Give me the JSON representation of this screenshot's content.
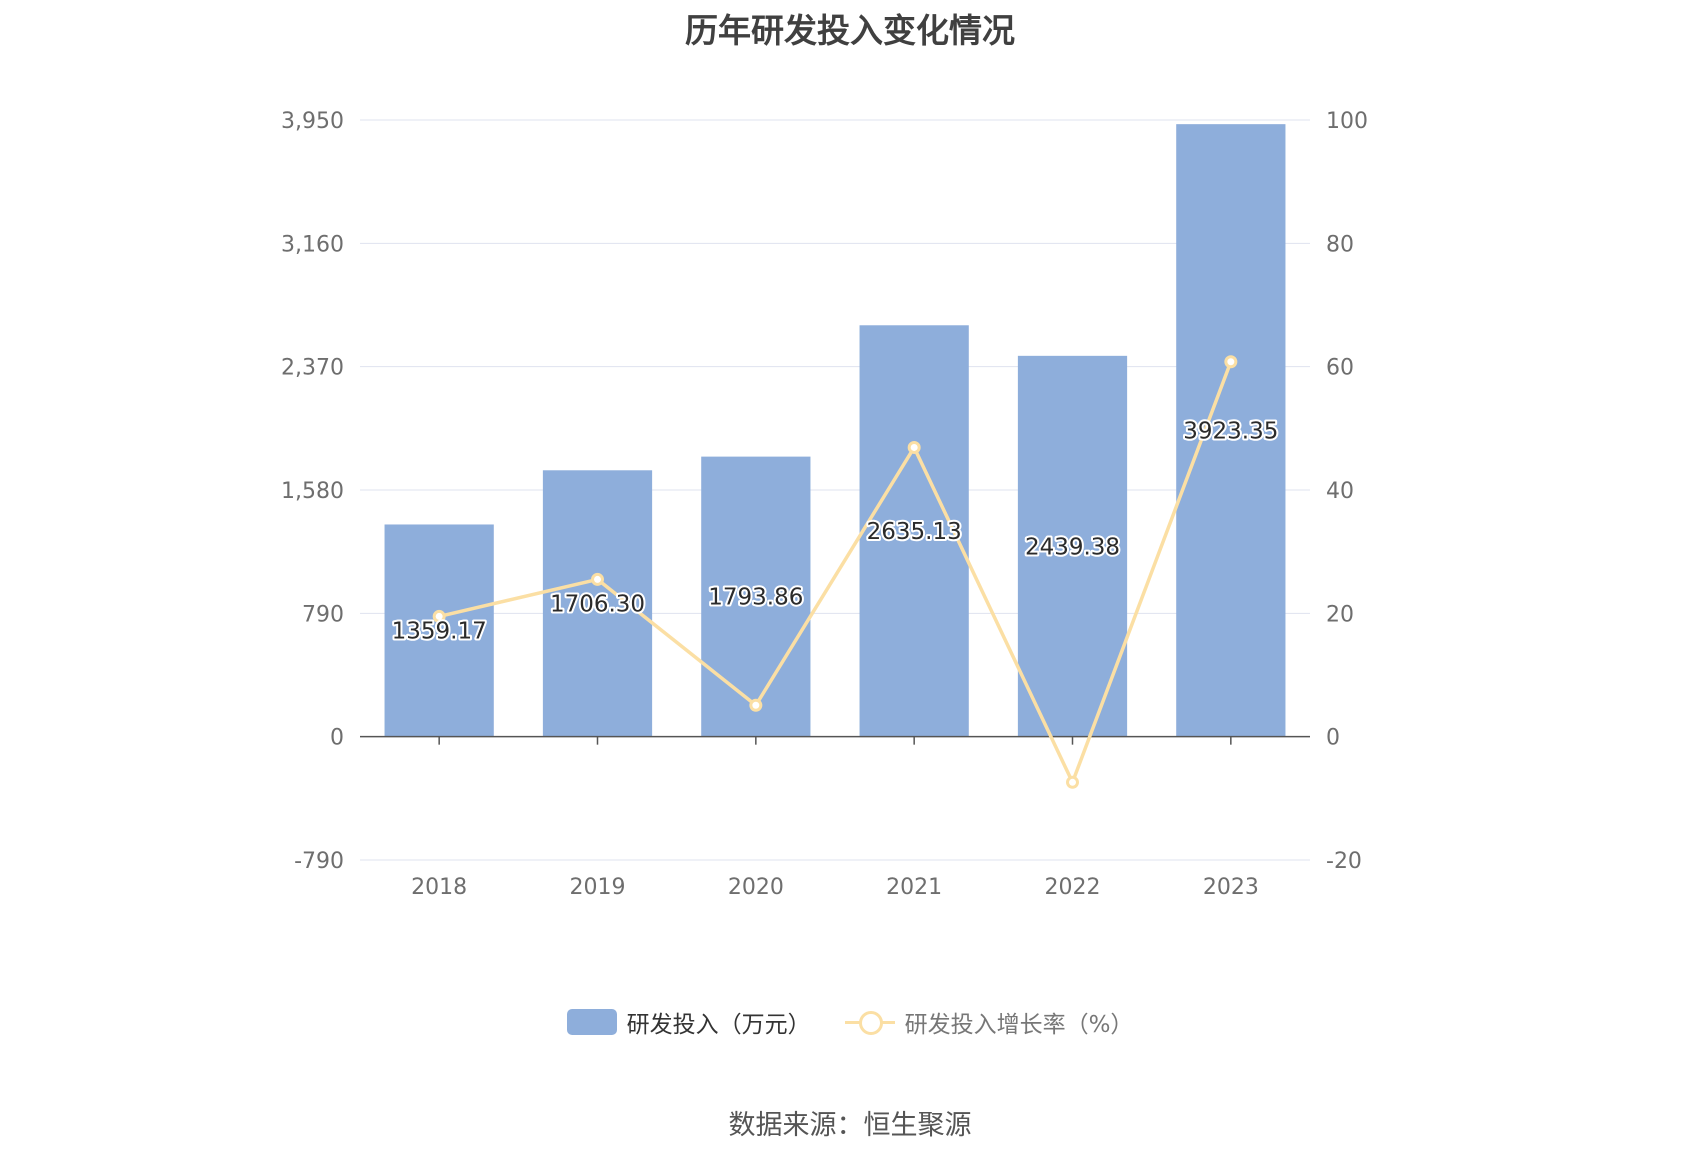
{
  "title": "历年研发投入变化情况",
  "source_text": "数据来源：恒生聚源",
  "colors": {
    "bar": "#8eaedb",
    "line": "#fbdfa4",
    "grid": "#dfe3ef",
    "axis": "#555555"
  },
  "chart_data": {
    "type": "bar",
    "categories": [
      "2018",
      "2019",
      "2020",
      "2021",
      "2022",
      "2023"
    ],
    "series": [
      {
        "name": "研发投入（万元）",
        "type": "bar",
        "axis": "left",
        "values": [
          1359.17,
          1706.3,
          1793.86,
          2635.13,
          2439.38,
          3923.35
        ],
        "labels": [
          "1359.17",
          "1706.30",
          "1793.86",
          "2635.13",
          "2439.38",
          "3923.35"
        ]
      },
      {
        "name": "研发投入增长率（%）",
        "type": "line",
        "axis": "right",
        "values": [
          19.5,
          25.5,
          5.1,
          46.9,
          -7.4,
          60.8
        ]
      }
    ],
    "y_left": {
      "ticks": [
        -790,
        0,
        790,
        1580,
        2370,
        3160,
        3950
      ],
      "tick_labels": [
        "-790",
        "0",
        "790",
        "1,580",
        "2,370",
        "3,160",
        "3,950"
      ],
      "min": -790,
      "max": 3950
    },
    "y_right": {
      "ticks": [
        -20,
        0,
        20,
        40,
        60,
        80,
        100
      ],
      "tick_labels": [
        "-20",
        "0",
        "20",
        "40",
        "60",
        "80",
        "100"
      ],
      "min": -20,
      "max": 100
    },
    "grid": true,
    "legend_position": "bottom-center"
  }
}
